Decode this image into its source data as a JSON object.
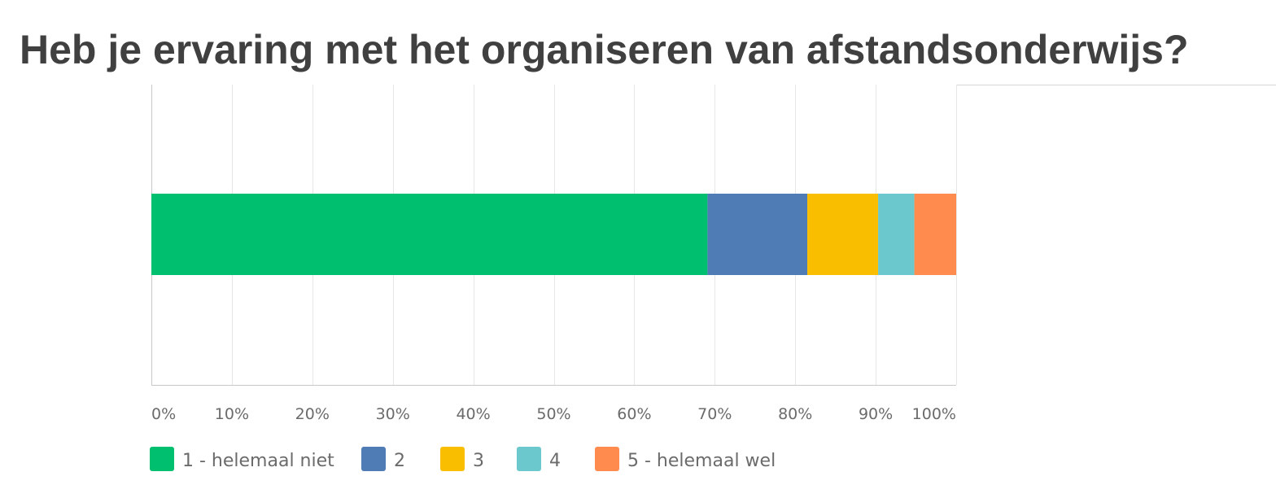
{
  "chart_data": {
    "type": "bar",
    "orientation": "horizontal",
    "stacked": true,
    "title": "Heb je ervaring met het organiseren van afstandsonderwijs?",
    "xlabel": "",
    "ylabel": "",
    "xlim": [
      0,
      100
    ],
    "x_ticks": [
      "0%",
      "10%",
      "20%",
      "30%",
      "40%",
      "50%",
      "60%",
      "70%",
      "80%",
      "90%",
      "100%"
    ],
    "grid": true,
    "legend_position": "bottom",
    "series": [
      {
        "name": "1 - helemaal niet",
        "values": [
          69.1
        ],
        "color": "#00bf6f"
      },
      {
        "name": "2",
        "values": [
          12.4
        ],
        "color": "#507cb6"
      },
      {
        "name": "3",
        "values": [
          8.8
        ],
        "color": "#f9be00"
      },
      {
        "name": "4",
        "values": [
          4.5
        ],
        "color": "#6bc8cd"
      },
      {
        "name": "5 - helemaal wel",
        "values": [
          5.2
        ],
        "color": "#ff8b4f"
      }
    ]
  }
}
